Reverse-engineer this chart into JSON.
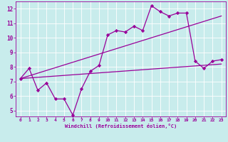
{
  "xlabel": "Windchill (Refroidissement éolien,°C)",
  "background_color": "#c8ecec",
  "grid_color": "#ffffff",
  "line_color": "#990099",
  "x_ticks": [
    0,
    1,
    2,
    3,
    4,
    5,
    6,
    7,
    8,
    9,
    10,
    11,
    12,
    13,
    14,
    15,
    16,
    17,
    18,
    19,
    20,
    21,
    22,
    23
  ],
  "y_ticks": [
    5,
    6,
    7,
    8,
    9,
    10,
    11,
    12
  ],
  "ylim": [
    4.6,
    12.5
  ],
  "xlim": [
    -0.5,
    23.5
  ],
  "series1_x": [
    0,
    1,
    2,
    3,
    4,
    5,
    6,
    7,
    8,
    9,
    10,
    11,
    12,
    13,
    14,
    15,
    16,
    17,
    18,
    19,
    20,
    21,
    22,
    23
  ],
  "series1_y": [
    7.2,
    7.9,
    6.4,
    6.9,
    5.8,
    5.8,
    4.7,
    6.5,
    7.7,
    8.1,
    10.2,
    10.5,
    10.4,
    10.8,
    10.5,
    12.2,
    11.8,
    11.5,
    11.7,
    11.7,
    8.4,
    7.9,
    8.4,
    8.5
  ],
  "series2_x": [
    0,
    23
  ],
  "series2_y": [
    7.2,
    8.2
  ],
  "series3_x": [
    0,
    23
  ],
  "series3_y": [
    7.2,
    11.5
  ],
  "marker": "D",
  "marker_size": 2.2,
  "line_width": 0.9
}
